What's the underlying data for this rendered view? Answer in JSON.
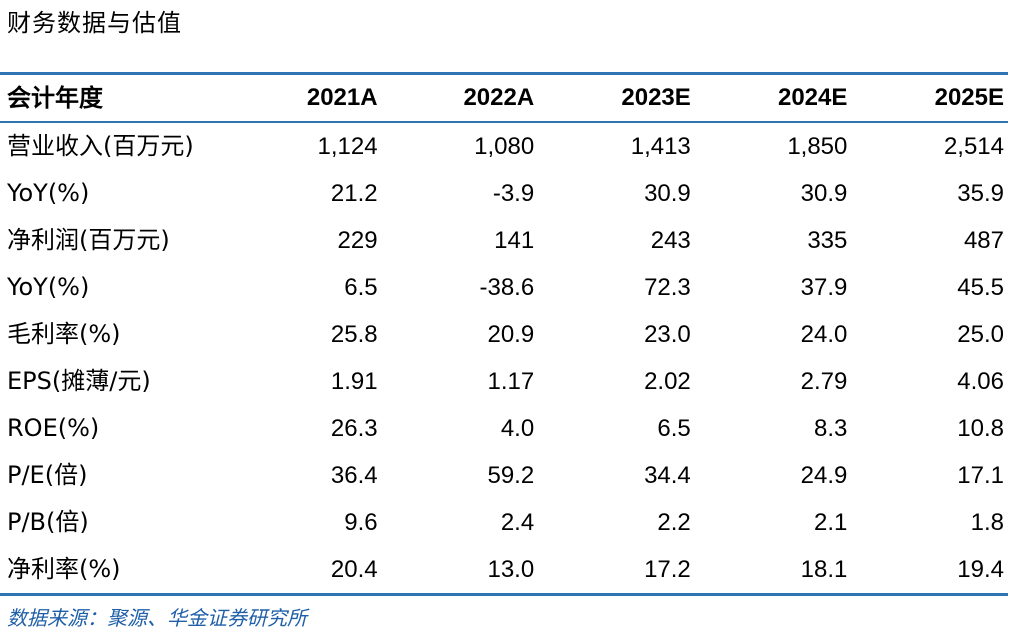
{
  "title": "财务数据与估值",
  "table": {
    "header": {
      "label": "会计年度",
      "years": [
        "2021A",
        "2022A",
        "2023E",
        "2024E",
        "2025E"
      ]
    },
    "rows": [
      {
        "label": "营业收入(百万元)",
        "values": [
          "1,124",
          "1,080",
          "1,413",
          "1,850",
          "2,514"
        ]
      },
      {
        "label": "YoY(%)",
        "values": [
          "21.2",
          "-3.9",
          "30.9",
          "30.9",
          "35.9"
        ]
      },
      {
        "label": "净利润(百万元)",
        "values": [
          "229",
          "141",
          "243",
          "335",
          "487"
        ]
      },
      {
        "label": "YoY(%)",
        "values": [
          "6.5",
          "-38.6",
          "72.3",
          "37.9",
          "45.5"
        ]
      },
      {
        "label": "毛利率(%)",
        "values": [
          "25.8",
          "20.9",
          "23.0",
          "24.0",
          "25.0"
        ]
      },
      {
        "label": "EPS(摊薄/元)",
        "values": [
          "1.91",
          "1.17",
          "2.02",
          "2.79",
          "4.06"
        ]
      },
      {
        "label": "ROE(%)",
        "values": [
          "26.3",
          "4.0",
          "6.5",
          "8.3",
          "10.8"
        ]
      },
      {
        "label": "P/E(倍)",
        "values": [
          "36.4",
          "59.2",
          "34.4",
          "24.9",
          "17.1"
        ]
      },
      {
        "label": "P/B(倍)",
        "values": [
          "9.6",
          "2.4",
          "2.2",
          "2.1",
          "1.8"
        ]
      },
      {
        "label": "净利率(%)",
        "values": [
          "20.4",
          "13.0",
          "17.2",
          "18.1",
          "19.4"
        ]
      }
    ]
  },
  "source": "数据来源：聚源、华金证券研究所",
  "colors": {
    "rule": "#2f74b5",
    "source_text": "#1f5fa8",
    "text": "#000000"
  }
}
